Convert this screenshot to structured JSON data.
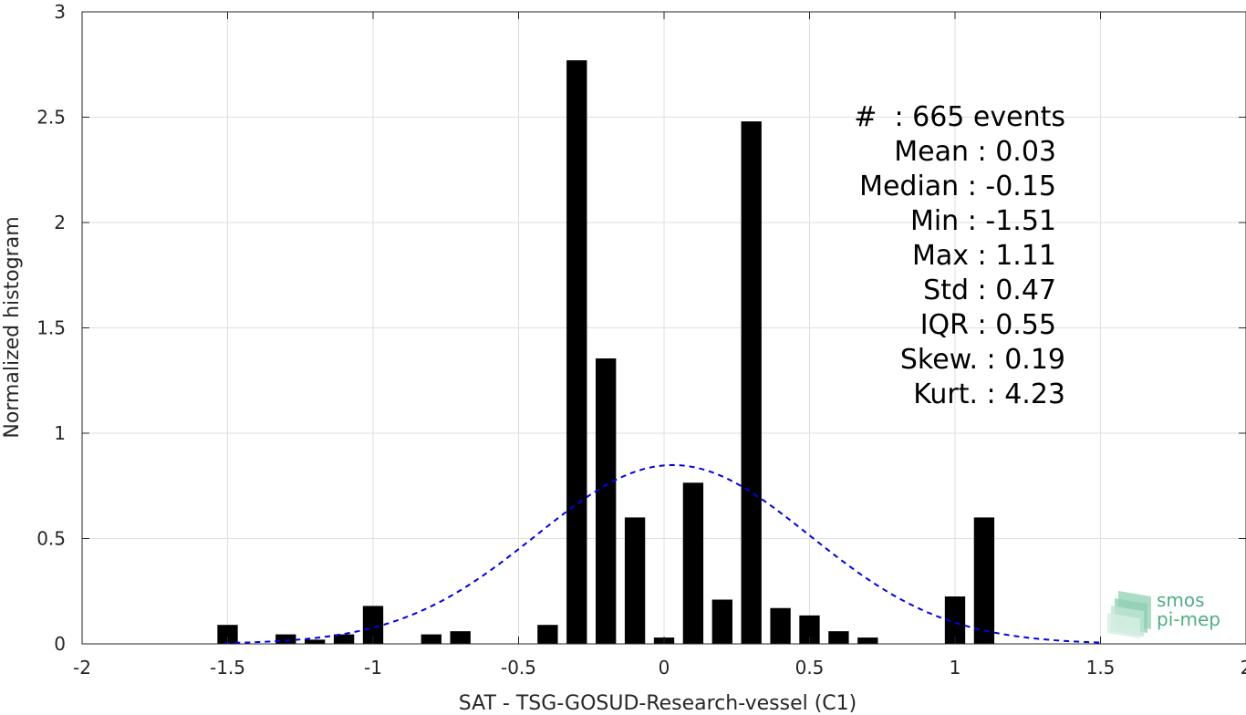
{
  "chart_data": {
    "type": "bar",
    "xlabel": "SAT - TSG-GOSUD-Research-vessel (C1)",
    "ylabel": "Normalized histogram",
    "xlim": [
      -2,
      2
    ],
    "ylim": [
      0,
      3
    ],
    "xticks": [
      -2,
      -1.5,
      -1,
      -0.5,
      0,
      0.5,
      1,
      1.5,
      2
    ],
    "xtick_labels": [
      "-2",
      "-1.5",
      "-1",
      "-0.5",
      "0",
      "0.5",
      "1",
      "1.5",
      "2"
    ],
    "yticks": [
      0,
      0.5,
      1,
      1.5,
      2,
      2.5,
      3
    ],
    "ytick_labels": [
      "0",
      "0.5",
      "1",
      "1.5",
      "2",
      "2.5",
      "3"
    ],
    "grid": true,
    "bar_color": "#000000",
    "bar_width": 0.07,
    "bins": [
      {
        "x": -1.5,
        "value": 0.09
      },
      {
        "x": -1.3,
        "value": 0.045
      },
      {
        "x": -1.2,
        "value": 0.02
      },
      {
        "x": -1.1,
        "value": 0.045
      },
      {
        "x": -1.0,
        "value": 0.18
      },
      {
        "x": -0.8,
        "value": 0.045
      },
      {
        "x": -0.7,
        "value": 0.06
      },
      {
        "x": -0.4,
        "value": 0.09
      },
      {
        "x": -0.3,
        "value": 2.77
      },
      {
        "x": -0.2,
        "value": 1.355
      },
      {
        "x": -0.1,
        "value": 0.6
      },
      {
        "x": 0.0,
        "value": 0.03
      },
      {
        "x": 0.1,
        "value": 0.765
      },
      {
        "x": 0.2,
        "value": 0.21
      },
      {
        "x": 0.3,
        "value": 2.48
      },
      {
        "x": 0.4,
        "value": 0.17
      },
      {
        "x": 0.5,
        "value": 0.135
      },
      {
        "x": 0.6,
        "value": 0.06
      },
      {
        "x": 0.7,
        "value": 0.03
      },
      {
        "x": 1.0,
        "value": 0.225
      },
      {
        "x": 1.1,
        "value": 0.6
      }
    ],
    "fit_curve": {
      "style": "dashed",
      "color": "#0000ee",
      "mean": 0.03,
      "std": 0.47,
      "x_range": [
        -1.51,
        1.51
      ]
    },
    "stats_box": {
      "lines": [
        "#  : 665 events",
        "Mean : 0.03",
        "Median : -0.15",
        "Min : -1.51",
        "Max : 1.11",
        "Std : 0.47",
        "IQR : 0.55",
        "Skew. : 0.19",
        "Kurt. : 4.23"
      ]
    }
  },
  "logo": {
    "line1": "smos",
    "line2": "pi-mep",
    "color": "#4fae82"
  }
}
